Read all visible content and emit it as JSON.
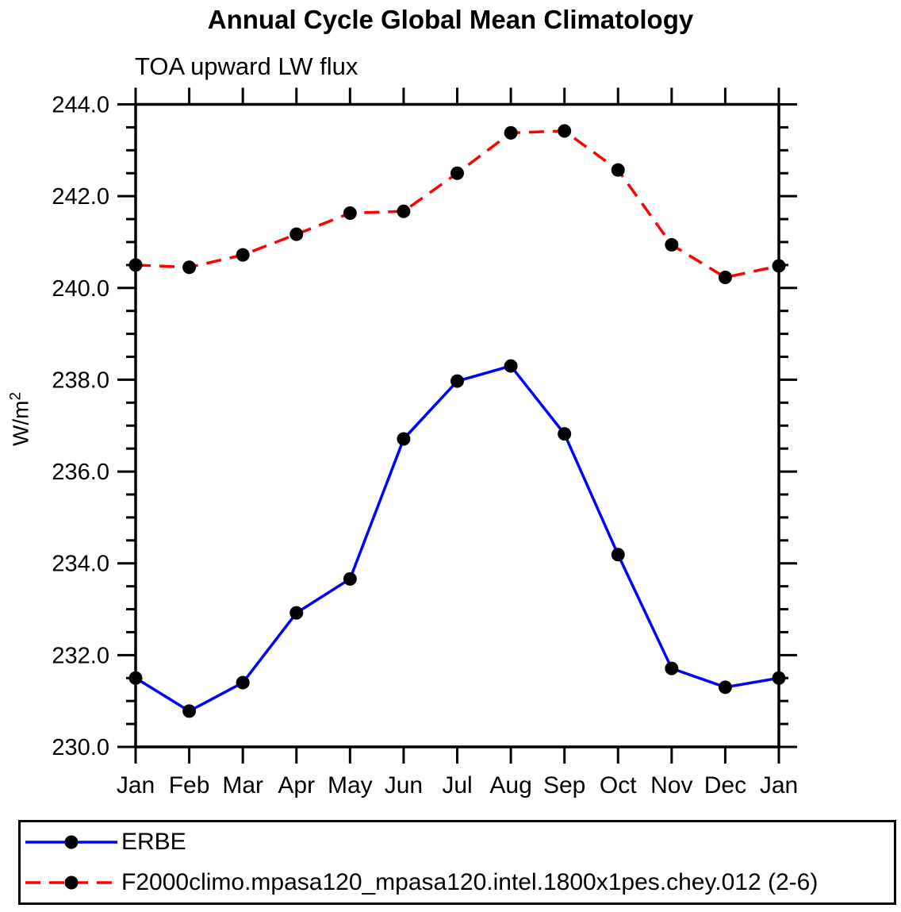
{
  "page": {
    "title": "Annual Cycle Global Mean Climatology",
    "subtitle": "TOA upward LW flux"
  },
  "axes": {
    "ylabel_base": "W/m",
    "ylabel_sup": "2",
    "ytick_values": [
      230.0,
      232.0,
      234.0,
      236.0,
      238.0,
      240.0,
      242.0,
      244.0
    ],
    "ytick_labels": [
      "230.0",
      "232.0",
      "234.0",
      "236.0",
      "238.0",
      "240.0",
      "242.0",
      "244.0"
    ]
  },
  "chart_data": {
    "type": "line",
    "title": "Annual Cycle Global Mean Climatology",
    "subtitle": "TOA upward LW flux",
    "xlabel": "",
    "ylabel": "W/m2",
    "categories": [
      "Jan",
      "Feb",
      "Mar",
      "Apr",
      "May",
      "Jun",
      "Jul",
      "Aug",
      "Sep",
      "Oct",
      "Nov",
      "Dec",
      "Jan"
    ],
    "ylim": [
      230.0,
      244.0
    ],
    "ytick_major_interval": 2.0,
    "ytick_minor_interval": 0.5,
    "grid": false,
    "legend_position": "bottom-left-box",
    "marker": "filled-circle",
    "marker_color": "#000000",
    "series": [
      {
        "name": "ERBE",
        "color": "#0000ff",
        "line_style": "solid",
        "values": [
          231.5,
          230.78,
          231.4,
          232.92,
          233.66,
          236.71,
          237.97,
          238.3,
          236.82,
          234.19,
          231.71,
          231.3,
          231.5
        ]
      },
      {
        "name": "F2000climo.mpasa120_mpasa120.intel.1800x1pes.chey.012 (2-6)",
        "color": "#ff0000",
        "line_style": "dashed",
        "values": [
          240.5,
          240.45,
          240.72,
          241.17,
          241.63,
          241.67,
          242.5,
          243.38,
          243.42,
          242.57,
          240.94,
          240.23,
          240.48
        ]
      }
    ]
  }
}
